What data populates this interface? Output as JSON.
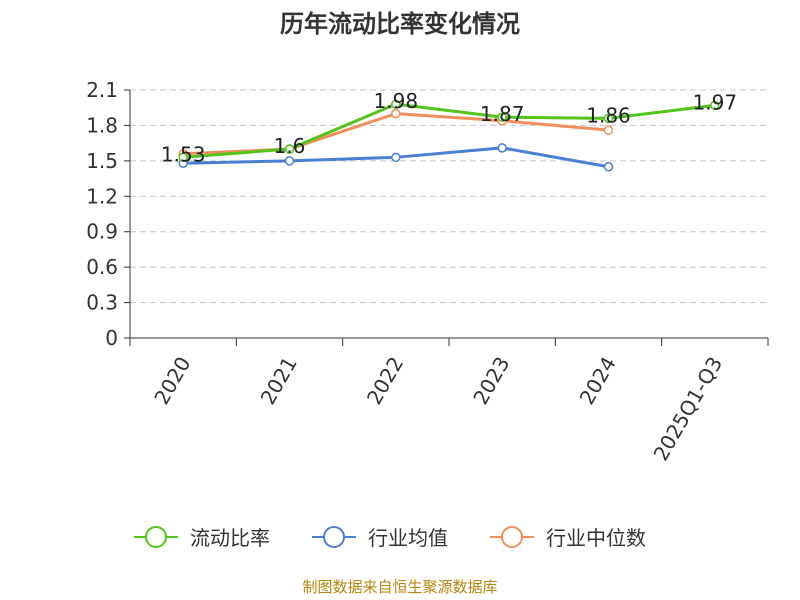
{
  "chart_data": {
    "type": "line",
    "title": "历年流动比率变化情况",
    "categories": [
      "2020",
      "2021",
      "2022",
      "2023",
      "2024",
      "2025Q1-Q3"
    ],
    "y_ticks": [
      "0",
      "0.3",
      "0.6",
      "0.9",
      "1.2",
      "1.5",
      "1.8",
      "2.1"
    ],
    "ylim": [
      0,
      2.1
    ],
    "grid": true,
    "legend_position": "bottom",
    "series": [
      {
        "name": "流动比率",
        "color": "#52c41a",
        "values": [
          1.53,
          1.6,
          1.98,
          1.87,
          1.86,
          1.97
        ],
        "labels": [
          "1.53",
          "1.6",
          "1.98",
          "1.87",
          "1.86",
          "1.97"
        ]
      },
      {
        "name": "行业均值",
        "color": "#4a7fd4",
        "values": [
          1.48,
          1.5,
          1.53,
          1.61,
          1.45,
          null
        ]
      },
      {
        "name": "行业中位数",
        "color": "#f28e5b",
        "values": [
          1.56,
          1.6,
          1.9,
          1.84,
          1.76,
          null
        ]
      }
    ]
  },
  "source": "制图数据来自恒生聚源数据库"
}
